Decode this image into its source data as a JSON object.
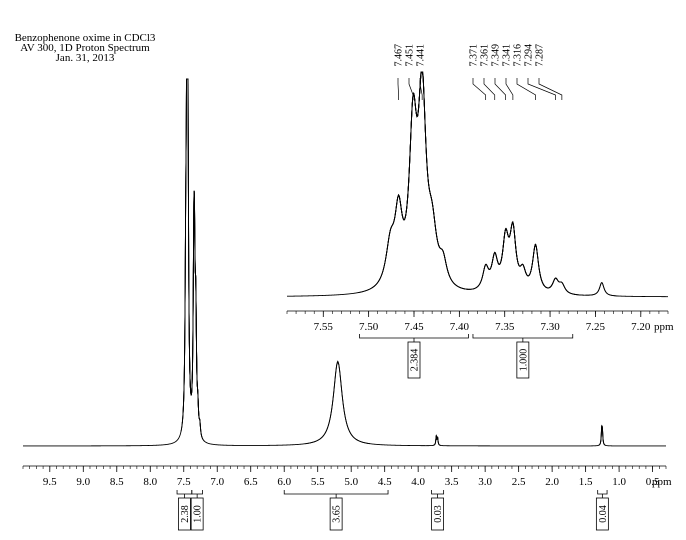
{
  "header": {
    "line1": "Benzophenone oxime in CDCl3",
    "line2": "AV 300, 1D Proton Spectrum",
    "line3": "Jan. 31, 2013"
  },
  "chart_data": [
    {
      "type": "line",
      "name": "full-spectrum",
      "xlabel": "ppm",
      "xlim": [
        9.9,
        0.3
      ],
      "x_reversed": true,
      "grid": false,
      "xticks": [
        "9.5",
        "9.0",
        "8.5",
        "8.0",
        "7.5",
        "7.0",
        "6.5",
        "6.0",
        "5.5",
        "5.0",
        "4.5",
        "4.0",
        "3.5",
        "3.0",
        "2.5",
        "2.0",
        "1.5",
        "1.0",
        "0.5"
      ],
      "peaks": [
        {
          "ppm": 7.45,
          "height": 1.0,
          "width": 0.012
        },
        {
          "ppm": 7.44,
          "height": 0.62,
          "width": 0.012
        },
        {
          "ppm": 7.47,
          "height": 0.35,
          "width": 0.012
        },
        {
          "ppm": 7.35,
          "height": 0.38,
          "width": 0.012
        },
        {
          "ppm": 7.34,
          "height": 0.34,
          "width": 0.012
        },
        {
          "ppm": 7.32,
          "height": 0.28,
          "width": 0.012
        },
        {
          "ppm": 7.29,
          "height": 0.06,
          "width": 0.012
        },
        {
          "ppm": 7.26,
          "height": 0.03,
          "width": 0.012
        },
        {
          "ppm": 5.2,
          "height": 0.23,
          "width": 0.08
        },
        {
          "ppm": 3.73,
          "height": 0.025,
          "width": 0.008
        },
        {
          "ppm": 3.71,
          "height": 0.02,
          "width": 0.008
        },
        {
          "ppm": 1.26,
          "height": 0.04,
          "width": 0.008
        },
        {
          "ppm": 1.25,
          "height": 0.035,
          "width": 0.008
        }
      ],
      "integrals": [
        {
          "from": 7.6,
          "to": 7.38,
          "value": "2.38"
        },
        {
          "from": 7.38,
          "to": 7.22,
          "value": "1.00"
        },
        {
          "from": 6.0,
          "to": 4.45,
          "value": "3.65"
        },
        {
          "from": 3.8,
          "to": 3.62,
          "value": "0.03"
        },
        {
          "from": 1.32,
          "to": 1.18,
          "value": "0.04"
        }
      ]
    },
    {
      "type": "line",
      "name": "expanded-aromatic-region",
      "xlabel": "ppm",
      "xlim": [
        7.59,
        7.17
      ],
      "x_reversed": true,
      "grid": false,
      "xticks": [
        "7.55",
        "7.50",
        "7.45",
        "7.40",
        "7.35",
        "7.30",
        "7.25",
        "7.20"
      ],
      "peak_labels": [
        "7.467",
        "7.451",
        "7.441",
        "7.371",
        "7.361",
        "7.349",
        "7.341",
        "7.316",
        "7.294",
        "7.287"
      ],
      "peaks": [
        {
          "ppm": 7.476,
          "height": 0.18,
          "width": 0.006
        },
        {
          "ppm": 7.467,
          "height": 0.3,
          "width": 0.005
        },
        {
          "ppm": 7.451,
          "height": 0.68,
          "width": 0.005
        },
        {
          "ppm": 7.441,
          "height": 0.82,
          "width": 0.005
        },
        {
          "ppm": 7.43,
          "height": 0.22,
          "width": 0.006
        },
        {
          "ppm": 7.418,
          "height": 0.1,
          "width": 0.005
        },
        {
          "ppm": 7.371,
          "height": 0.1,
          "width": 0.004
        },
        {
          "ppm": 7.361,
          "height": 0.14,
          "width": 0.004
        },
        {
          "ppm": 7.349,
          "height": 0.22,
          "width": 0.004
        },
        {
          "ppm": 7.341,
          "height": 0.26,
          "width": 0.004
        },
        {
          "ppm": 7.33,
          "height": 0.08,
          "width": 0.004
        },
        {
          "ppm": 7.316,
          "height": 0.21,
          "width": 0.004
        },
        {
          "ppm": 7.294,
          "height": 0.06,
          "width": 0.004
        },
        {
          "ppm": 7.287,
          "height": 0.04,
          "width": 0.004
        },
        {
          "ppm": 7.243,
          "height": 0.06,
          "width": 0.003
        }
      ],
      "integrals": [
        {
          "from": 7.51,
          "to": 7.39,
          "value": "2.384"
        },
        {
          "from": 7.385,
          "to": 7.275,
          "value": "1.000"
        }
      ]
    }
  ]
}
